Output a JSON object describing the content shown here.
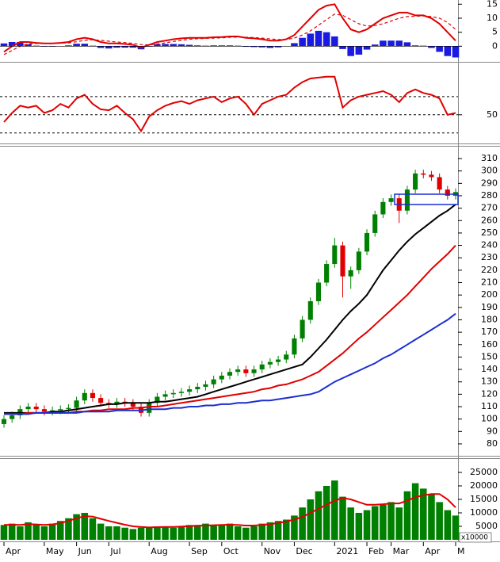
{
  "chart_data": [
    {
      "type": "macd",
      "ylim": [
        -5,
        16.5
      ],
      "yticks": [
        0,
        5,
        10,
        15
      ],
      "series": [
        {
          "name": "MACD",
          "kind": "line",
          "color": "#e00000",
          "values": [
            -2,
            0,
            1.5,
            1.5,
            1.2,
            1,
            1,
            1.2,
            1.5,
            2.5,
            3,
            2.5,
            1.5,
            1,
            1,
            0.8,
            0.5,
            -0.5,
            0.5,
            1.5,
            2,
            2.5,
            2.8,
            3,
            3,
            3,
            3.2,
            3.3,
            3.5,
            3.5,
            3,
            2.8,
            2.5,
            2,
            2,
            2.5,
            4,
            7,
            10,
            13,
            14.5,
            15,
            10,
            6,
            5,
            6,
            8,
            10,
            11,
            12,
            12,
            11,
            11,
            10,
            8,
            5,
            2
          ]
        },
        {
          "name": "Signal",
          "kind": "line",
          "dashed": true,
          "color": "#e00000",
          "values": [
            -3,
            -1.5,
            0,
            0.8,
            1,
            1,
            1,
            1.1,
            1.2,
            1.6,
            2.1,
            2.3,
            2.1,
            1.8,
            1.5,
            1.3,
            1,
            0.6,
            0.5,
            0.8,
            1.2,
            1.7,
            2.1,
            2.5,
            2.7,
            2.8,
            2.9,
            3,
            3.2,
            3.3,
            3.2,
            3.1,
            2.9,
            2.6,
            2.4,
            2.4,
            2.9,
            4,
            5.5,
            7.5,
            9.5,
            11.5,
            11,
            9.5,
            8,
            7.2,
            7.4,
            8,
            9,
            10,
            10.6,
            10.7,
            10.8,
            10.6,
            10,
            8.5,
            6
          ]
        },
        {
          "name": "Histogram",
          "kind": "bar",
          "color": "#1a1ae0",
          "values": [
            1,
            1.5,
            1.5,
            0.7,
            0.2,
            0,
            0,
            0.1,
            0.3,
            0.9,
            0.9,
            0.2,
            -0.6,
            -0.8,
            -0.5,
            -0.5,
            -0.5,
            -1.1,
            0,
            0.7,
            0.8,
            0.8,
            0.7,
            0.5,
            0.3,
            0.2,
            0.3,
            0.3,
            0.3,
            0.2,
            -0.2,
            -0.3,
            -0.4,
            -0.6,
            -0.4,
            0.1,
            1.1,
            3,
            4.5,
            5.5,
            5,
            3.5,
            -1,
            -3.5,
            -3,
            -1.2,
            0.6,
            2,
            2,
            2,
            1.4,
            0.3,
            0.2,
            -0.6,
            -2,
            -3.5,
            -4
          ]
        }
      ]
    },
    {
      "type": "rsi",
      "ylim": [
        21,
        104
      ],
      "yticks": [
        50
      ],
      "levels": [
        30,
        50,
        70
      ],
      "series": [
        {
          "name": "RSI",
          "kind": "line",
          "color": "#e00000",
          "values": [
            42,
            52,
            60,
            58,
            60,
            52,
            55,
            62,
            58,
            68,
            72,
            62,
            56,
            55,
            60,
            52,
            45,
            32,
            48,
            55,
            60,
            63,
            65,
            62,
            66,
            68,
            70,
            64,
            68,
            70,
            62,
            50,
            62,
            66,
            70,
            72,
            80,
            86,
            90,
            91,
            92,
            92,
            58,
            66,
            70,
            72,
            74,
            76,
            72,
            64,
            74,
            78,
            74,
            72,
            68,
            50,
            52
          ]
        }
      ]
    },
    {
      "type": "candlestick",
      "ylim": [
        70.4,
        319.6
      ],
      "yticks": [
        80,
        90,
        100,
        110,
        120,
        130,
        140,
        150,
        160,
        170,
        180,
        190,
        200,
        210,
        220,
        230,
        240,
        250,
        260,
        270,
        280,
        290,
        300,
        310
      ],
      "up_color": "#008000",
      "down_color": "#e00000",
      "open": [
        96,
        100,
        103,
        108,
        110,
        108,
        106,
        107,
        108,
        109,
        115,
        121,
        117,
        113,
        112,
        114,
        113,
        110,
        105,
        113,
        118,
        120,
        121,
        122,
        124,
        126,
        128,
        132,
        135,
        138,
        140,
        137,
        140,
        144,
        146,
        148,
        152,
        165,
        180,
        195,
        210,
        225,
        240,
        215,
        220,
        235,
        250,
        265,
        275,
        278,
        268,
        285,
        298,
        297,
        295,
        285,
        280
      ],
      "high": [
        103,
        106,
        111,
        113,
        113,
        111,
        110,
        111,
        112,
        118,
        124,
        124,
        120,
        116,
        117,
        117,
        116,
        113,
        116,
        121,
        123,
        124,
        125,
        127,
        129,
        131,
        135,
        138,
        141,
        143,
        143,
        143,
        147,
        149,
        151,
        155,
        168,
        183,
        198,
        213,
        228,
        246,
        243,
        223,
        238,
        253,
        268,
        278,
        281,
        281,
        288,
        301,
        301,
        300,
        298,
        288,
        286
      ],
      "low": [
        93,
        97,
        100,
        105,
        105,
        103,
        103,
        104,
        105,
        106,
        112,
        114,
        110,
        109,
        109,
        110,
        107,
        102,
        102,
        110,
        115,
        117,
        118,
        119,
        121,
        123,
        125,
        129,
        132,
        135,
        134,
        134,
        137,
        141,
        143,
        145,
        149,
        162,
        177,
        192,
        207,
        222,
        198,
        205,
        217,
        232,
        247,
        262,
        272,
        258,
        265,
        282,
        294,
        292,
        282,
        277,
        277
      ],
      "close": [
        100,
        103,
        108,
        110,
        108,
        106,
        107,
        108,
        109,
        115,
        121,
        117,
        113,
        112,
        114,
        113,
        110,
        105,
        113,
        118,
        120,
        121,
        122,
        124,
        126,
        128,
        132,
        135,
        138,
        140,
        137,
        140,
        144,
        146,
        148,
        152,
        165,
        180,
        195,
        210,
        225,
        240,
        215,
        220,
        235,
        250,
        265,
        275,
        278,
        268,
        285,
        298,
        297,
        295,
        285,
        280,
        283
      ],
      "series": [
        {
          "name": "MA1",
          "kind": "line",
          "color": "#000000",
          "values": [
            105,
            105,
            105,
            105,
            105,
            105,
            106,
            106,
            107,
            108,
            109,
            110,
            111,
            112,
            112,
            113,
            113,
            113,
            113,
            114,
            114,
            115,
            116,
            117,
            118,
            120,
            122,
            124,
            126,
            128,
            130,
            132,
            134,
            136,
            138,
            140,
            142,
            144,
            150,
            157,
            164,
            172,
            180,
            187,
            193,
            200,
            210,
            220,
            228,
            236,
            243,
            249,
            254,
            259,
            264,
            268,
            273
          ]
        },
        {
          "name": "MA2",
          "kind": "line",
          "color": "#e00000",
          "values": [
            104,
            104,
            104,
            105,
            105,
            105,
            105,
            105,
            105,
            106,
            106,
            107,
            107,
            108,
            108,
            108,
            109,
            109,
            110,
            110,
            111,
            112,
            113,
            114,
            115,
            116,
            117,
            118,
            119,
            120,
            121,
            122,
            124,
            125,
            127,
            128,
            130,
            132,
            135,
            138,
            143,
            148,
            153,
            159,
            165,
            170,
            176,
            182,
            188,
            194,
            200,
            207,
            214,
            221,
            227,
            233,
            240
          ]
        },
        {
          "name": "MA3",
          "kind": "line",
          "color": "#1c2fd0",
          "values": [
            104,
            104,
            104,
            104,
            105,
            105,
            105,
            105,
            105,
            105,
            106,
            106,
            106,
            106,
            107,
            107,
            107,
            107,
            108,
            108,
            108,
            109,
            109,
            110,
            110,
            111,
            111,
            112,
            112,
            113,
            113,
            114,
            115,
            115,
            116,
            117,
            118,
            119,
            120,
            122,
            126,
            130,
            133,
            136,
            139,
            142,
            145,
            149,
            152,
            156,
            160,
            164,
            168,
            172,
            176,
            180,
            185
          ]
        }
      ]
    },
    {
      "type": "volume",
      "ylim": [
        0,
        30000
      ],
      "yticks": [
        5000,
        10000,
        15000,
        20000,
        25000
      ],
      "unit_label": "x10000",
      "categories": [
        "Apr",
        null,
        null,
        null,
        null,
        "May",
        null,
        null,
        null,
        "Jun",
        null,
        null,
        null,
        "Jul",
        null,
        null,
        null,
        null,
        "Aug",
        null,
        null,
        null,
        null,
        "Sep",
        null,
        null,
        null,
        "Oct",
        null,
        null,
        null,
        null,
        "Nov",
        null,
        null,
        null,
        "Dec",
        null,
        null,
        null,
        null,
        "2021",
        null,
        null,
        null,
        "Feb",
        null,
        null,
        "Mar",
        null,
        null,
        null,
        "Apr",
        null,
        null,
        null,
        "M"
      ],
      "series": [
        {
          "name": "Volume",
          "kind": "bar",
          "color": "#008000",
          "values": [
            5500,
            6000,
            5000,
            6500,
            5500,
            5000,
            6000,
            7000,
            8000,
            9500,
            10000,
            8000,
            6000,
            5000,
            5000,
            4500,
            4000,
            4500,
            4500,
            5000,
            5000,
            4500,
            5000,
            5500,
            5500,
            6000,
            5500,
            5500,
            6000,
            5000,
            4500,
            5000,
            6000,
            6500,
            7000,
            7500,
            9000,
            12000,
            15000,
            18000,
            20000,
            22000,
            16000,
            12000,
            10000,
            11000,
            12500,
            13000,
            14000,
            12000,
            18000,
            21000,
            19000,
            17000,
            14000,
            11000,
            9000
          ]
        },
        {
          "name": "Volume MA",
          "kind": "line",
          "color": "#e00000",
          "values": [
            5500,
            5600,
            5500,
            5800,
            5700,
            5500,
            5700,
            6200,
            7000,
            8000,
            8800,
            8600,
            7800,
            7000,
            6300,
            5600,
            5000,
            4800,
            4600,
            4700,
            4800,
            4800,
            4900,
            5100,
            5200,
            5300,
            5400,
            5500,
            5600,
            5500,
            5300,
            5300,
            5500,
            5800,
            6200,
            6800,
            7500,
            8500,
            10000,
            11500,
            13000,
            14500,
            15500,
            15000,
            14000,
            13000,
            13000,
            13200,
            13500,
            13500,
            14500,
            15800,
            16500,
            17000,
            17000,
            15000,
            12000
          ]
        }
      ]
    }
  ]
}
